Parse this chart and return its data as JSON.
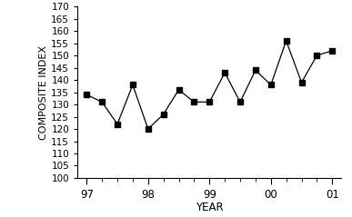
{
  "x": [
    97.0,
    97.25,
    97.5,
    97.75,
    98.0,
    98.25,
    98.5,
    98.75,
    99.0,
    99.25,
    99.5,
    99.75,
    100.0,
    100.25,
    100.5,
    100.75,
    101.0
  ],
  "y": [
    134,
    131,
    122,
    138,
    120,
    126,
    136,
    131,
    131,
    143,
    131,
    144,
    138,
    156,
    139,
    150,
    152
  ],
  "xtick_positions": [
    97,
    98,
    99,
    100,
    101
  ],
  "xtick_labels": [
    "97",
    "98",
    "99",
    "00",
    "01"
  ],
  "ytick_positions": [
    100,
    105,
    110,
    115,
    120,
    125,
    130,
    135,
    140,
    145,
    150,
    155,
    160,
    165,
    170
  ],
  "ytick_labels": [
    "100",
    "105",
    "110",
    "115",
    "120",
    "125",
    "130",
    "135",
    "140",
    "145",
    "150",
    "155",
    "160",
    "165",
    "170"
  ],
  "xlabel": "YEAR",
  "ylabel": "COMPOSITE INDEX",
  "ylim": [
    100,
    170
  ],
  "xlim": [
    96.85,
    101.15
  ],
  "marker": "s",
  "marker_size": 4,
  "line_color": "black",
  "marker_color": "black"
}
